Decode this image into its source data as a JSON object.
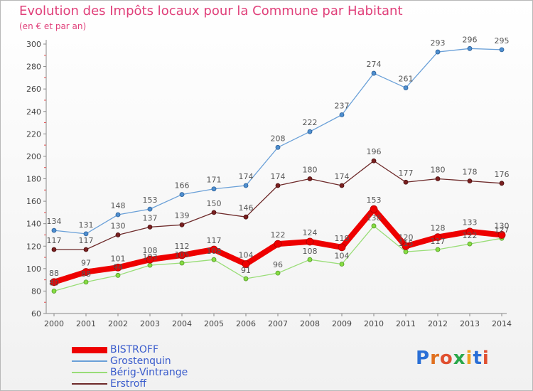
{
  "chart_data": {
    "type": "line",
    "title": "Evolution des Impôts locaux pour la Commune par Habitant",
    "subtitle": "(en € et par an)",
    "x": [
      "2000",
      "2001",
      "2002",
      "2003",
      "2004",
      "2005",
      "2006",
      "2007",
      "2008",
      "2009",
      "2010",
      "2011",
      "2012",
      "2013",
      "2014"
    ],
    "ylim": [
      60,
      300
    ],
    "yticks": [
      60,
      80,
      100,
      120,
      140,
      160,
      180,
      200,
      220,
      240,
      260,
      280,
      300
    ],
    "grid": false,
    "legend_position": "bottom-left",
    "series": [
      {
        "name": "BISTROFF",
        "color": "#ee0000",
        "values": [
          88,
          97,
          101,
          108,
          112,
          117,
          104,
          122,
          124,
          119,
          153,
          120,
          128,
          133,
          130
        ]
      },
      {
        "name": "Grostenquin",
        "color": "#6aa0d8",
        "values": [
          134,
          131,
          148,
          153,
          166,
          171,
          174,
          208,
          222,
          237,
          274,
          261,
          293,
          296,
          295
        ]
      },
      {
        "name": "Bérig-Vintrange",
        "color": "#99dd77",
        "values": [
          80,
          88,
          94,
          103,
          105,
          108,
          91,
          96,
          108,
          104,
          138,
          115,
          117,
          122,
          127
        ]
      },
      {
        "name": "Erstroff",
        "color": "#6e2a2a",
        "values": [
          117,
          117,
          130,
          137,
          139,
          150,
          146,
          174,
          180,
          174,
          196,
          177,
          180,
          178,
          176
        ]
      }
    ]
  },
  "logo": {
    "text": "Proxiti",
    "letters": [
      "P",
      "r",
      "o",
      "x",
      "i",
      "t",
      "i"
    ],
    "colors": [
      "#2a6fd6",
      "#e07020",
      "#e05030",
      "#2aa84a",
      "#f0a020",
      "#2a6fd6",
      "#e05030"
    ]
  }
}
